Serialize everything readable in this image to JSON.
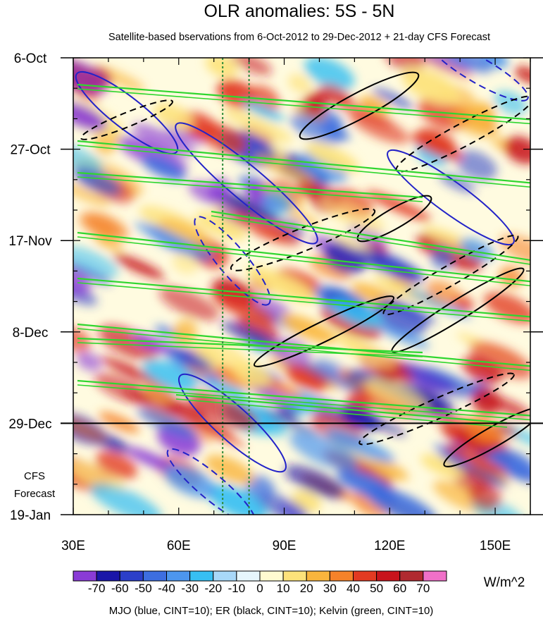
{
  "chart_data": {
    "type": "heatmap",
    "title": "OLR anomalies: 5S - 5N",
    "subtitle": "Satellite-based bservations from 6-Oct-2012 to 29-Dec-2012 + 21-day CFS Forecast",
    "xlim": [
      30,
      160
    ],
    "x_ticks": [
      {
        "value": 30,
        "label": "30E"
      },
      {
        "value": 60,
        "label": "60E"
      },
      {
        "value": 90,
        "label": "90E"
      },
      {
        "value": 120,
        "label": "120E"
      },
      {
        "value": 150,
        "label": "150E"
      }
    ],
    "y_ticks": [
      {
        "day": 0,
        "label": "6-Oct"
      },
      {
        "day": 21,
        "label": "27-Oct"
      },
      {
        "day": 42,
        "label": "17-Nov"
      },
      {
        "day": 63,
        "label": "8-Dec"
      },
      {
        "day": 84,
        "label": "29-Dec"
      },
      {
        "day": 105,
        "label": "19-Jan"
      }
    ],
    "forecast_label_lines": [
      "CFS",
      "Forecast"
    ],
    "observation_end_day": 84,
    "reference_lines_longitude": [
      72.5,
      80
    ],
    "colorbar": {
      "unit_label": "W/m^2",
      "levels": [
        -70,
        -60,
        -50,
        -40,
        -30,
        -20,
        -10,
        0,
        10,
        20,
        30,
        40,
        50,
        60,
        70
      ],
      "level_labels": [
        "-70",
        "-60",
        "-50",
        "-40",
        "-30",
        "-20",
        "-10",
        "0",
        "10",
        "20",
        "30",
        "40",
        "50",
        "60",
        "70"
      ],
      "colors": [
        "#8a3bd6",
        "#1a16a8",
        "#2b3fc9",
        "#3d6ee0",
        "#4d96ee",
        "#37bff2",
        "#a8d8f8",
        "#e6f6fc",
        "#fffbd0",
        "#fde27a",
        "#f9b53d",
        "#f5822a",
        "#e23a22",
        "#c8141c",
        "#b02a30",
        "#f070c8"
      ]
    },
    "legend_text": "MJO (blue, CINT=10); ER (black, CINT=10); Kelvin (green, CINT=10)",
    "series": [
      {
        "name": "MJO",
        "color": "#2323c8"
      },
      {
        "name": "ER",
        "color": "#000000"
      },
      {
        "name": "Kelvin",
        "color": "#2fd62f"
      }
    ]
  }
}
